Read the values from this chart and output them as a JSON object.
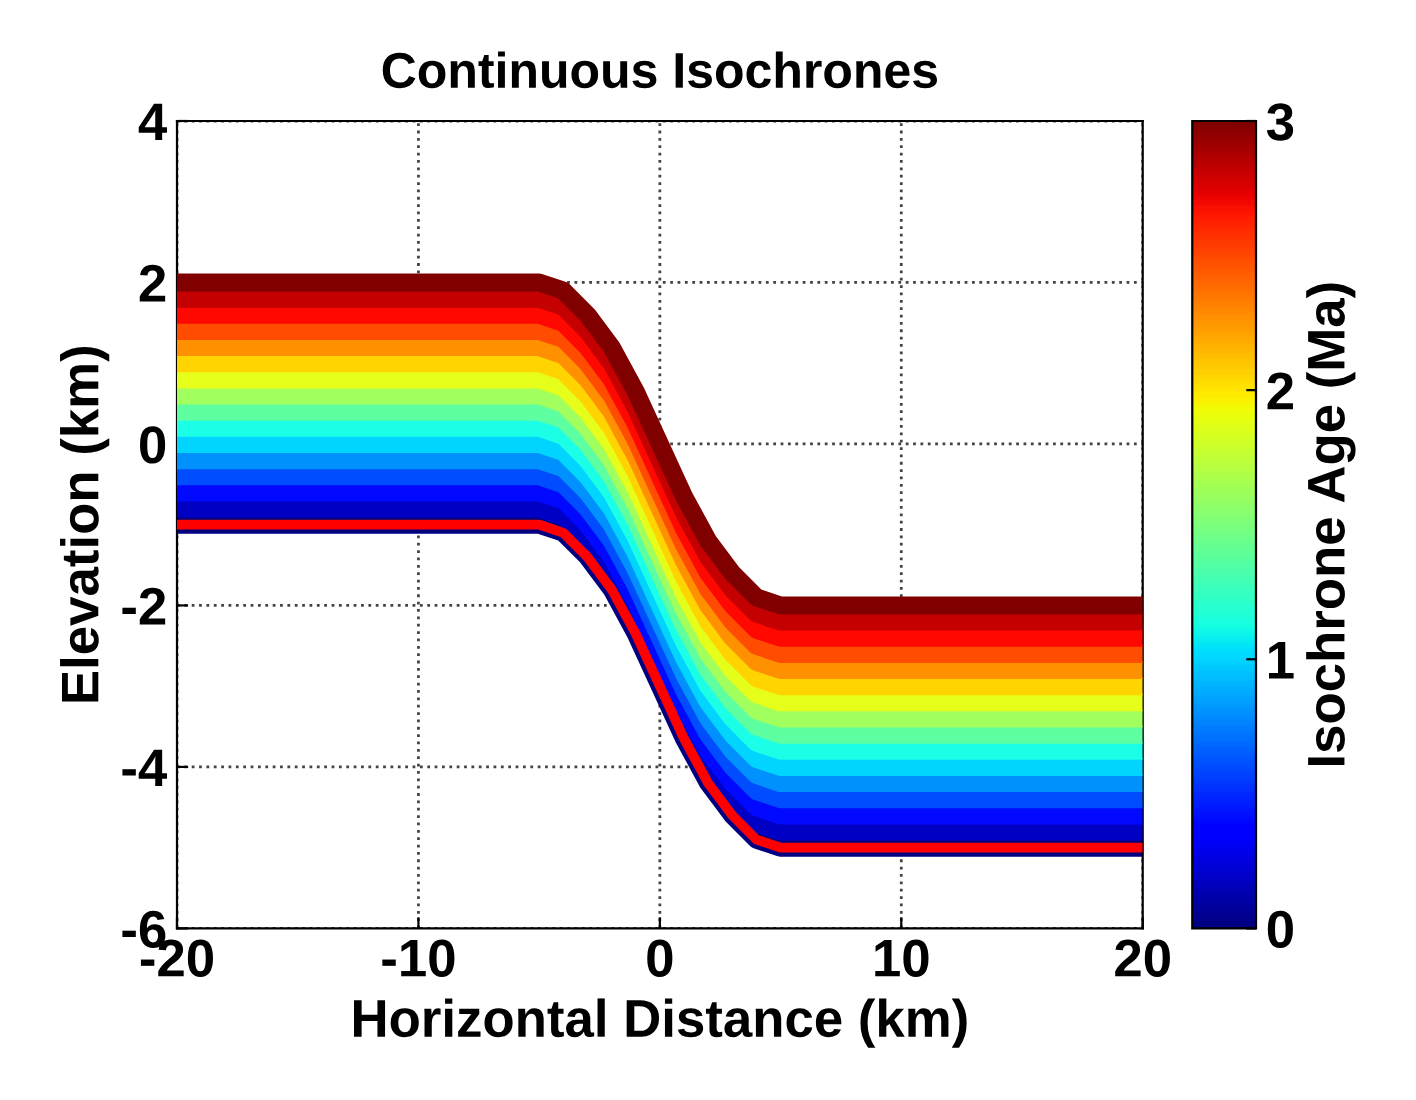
{
  "chart_data": {
    "type": "line",
    "title": "Continuous Isochrones",
    "xlabel": "Horizontal Distance (km)",
    "ylabel": "Elevation (km)",
    "clabel": "Isochrone Age (Ma)",
    "x": [
      -20,
      -5,
      -4,
      -3,
      -2,
      -1,
      0,
      1,
      2,
      3,
      4,
      5,
      20
    ],
    "xlim": [
      -20,
      20
    ],
    "xticks": [
      -20,
      -10,
      0,
      10,
      20
    ],
    "ylim": [
      -6,
      4
    ],
    "yticks": [
      -6,
      -4,
      -2,
      0,
      2,
      4
    ],
    "clim": [
      0,
      3
    ],
    "cticks": [
      0,
      1,
      2,
      3
    ],
    "grid": true,
    "legend": false,
    "series": [
      {
        "color": "#000080",
        "values": [
          -1,
          -1,
          -1.1,
          -1.4,
          -1.8,
          -2.35,
          -3,
          -3.65,
          -4.2,
          -4.6,
          -4.9,
          -5,
          -5
        ]
      },
      {
        "color": "#0000c4",
        "values": [
          -0.8,
          -0.8,
          -0.9,
          -1.2,
          -1.6,
          -2.15,
          -2.8,
          -3.45,
          -4,
          -4.4,
          -4.7,
          -4.8,
          -4.8
        ]
      },
      {
        "color": "#0008ff",
        "values": [
          -0.6,
          -0.6,
          -0.7,
          -1,
          -1.4,
          -1.95,
          -2.6,
          -3.25,
          -3.8,
          -4.2,
          -4.5,
          -4.6,
          -4.6
        ]
      },
      {
        "color": "#004cff",
        "values": [
          -0.4,
          -0.4,
          -0.5,
          -0.8,
          -1.2,
          -1.75,
          -2.4,
          -3.05,
          -3.6,
          -4,
          -4.3,
          -4.4,
          -4.4
        ]
      },
      {
        "color": "#0091ff",
        "values": [
          -0.2,
          -0.2,
          -0.3,
          -0.6,
          -1,
          -1.55,
          -2.2,
          -2.85,
          -3.4,
          -3.8,
          -4.1,
          -4.2,
          -4.2
        ]
      },
      {
        "color": "#00d4ff",
        "values": [
          0,
          0,
          -0.1,
          -0.4,
          -0.8,
          -1.35,
          -2,
          -2.65,
          -3.2,
          -3.6,
          -3.9,
          -4,
          -4
        ]
      },
      {
        "color": "#1affe6",
        "values": [
          0.2,
          0.2,
          0.1,
          -0.2,
          -0.6,
          -1.15,
          -1.8,
          -2.45,
          -3,
          -3.4,
          -3.7,
          -3.8,
          -3.8
        ]
      },
      {
        "color": "#5effa1",
        "values": [
          0.4,
          0.4,
          0.3,
          0,
          -0.4,
          -0.95,
          -1.6,
          -2.25,
          -2.8,
          -3.2,
          -3.5,
          -3.6,
          -3.6
        ]
      },
      {
        "color": "#a1ff5e",
        "values": [
          0.6,
          0.6,
          0.5,
          0.2,
          -0.2,
          -0.75,
          -1.4,
          -2.05,
          -2.6,
          -3,
          -3.3,
          -3.4,
          -3.4
        ]
      },
      {
        "color": "#e6ff1a",
        "values": [
          0.8,
          0.8,
          0.7,
          0.4,
          0,
          -0.55,
          -1.2,
          -1.85,
          -2.4,
          -2.8,
          -3.1,
          -3.2,
          -3.2
        ]
      },
      {
        "color": "#ffd400",
        "values": [
          1,
          1,
          0.9,
          0.6,
          0.2,
          -0.35,
          -1,
          -1.65,
          -2.2,
          -2.6,
          -2.9,
          -3,
          -3
        ]
      },
      {
        "color": "#ff9100",
        "values": [
          1.2,
          1.2,
          1.1,
          0.8,
          0.4,
          -0.15,
          -0.8,
          -1.45,
          -2,
          -2.4,
          -2.7,
          -2.8,
          -2.8
        ]
      },
      {
        "color": "#ff4c00",
        "values": [
          1.4,
          1.4,
          1.3,
          1,
          0.6,
          0.05,
          -0.6,
          -1.25,
          -1.8,
          -2.2,
          -2.5,
          -2.6,
          -2.6
        ]
      },
      {
        "color": "#ff0800",
        "values": [
          1.6,
          1.6,
          1.5,
          1.2,
          0.8,
          0.25,
          -0.4,
          -1.05,
          -1.6,
          -2,
          -2.3,
          -2.4,
          -2.4
        ]
      },
      {
        "color": "#c40000",
        "values": [
          1.8,
          1.8,
          1.7,
          1.4,
          1,
          0.45,
          -0.2,
          -0.85,
          -1.4,
          -1.8,
          -2.1,
          -2.2,
          -2.2
        ]
      },
      {
        "color": "#800000",
        "values": [
          2,
          2,
          1.9,
          1.6,
          1.2,
          0.65,
          0,
          -0.65,
          -1.2,
          -1.6,
          -1.9,
          -2,
          -2
        ]
      },
      {
        "color": "#ff0000",
        "values": [
          -1,
          -1,
          -1.1,
          -1.4,
          -1.8,
          -2.35,
          -3,
          -3.65,
          -4.2,
          -4.6,
          -4.9,
          -5,
          -5
        ]
      }
    ]
  }
}
